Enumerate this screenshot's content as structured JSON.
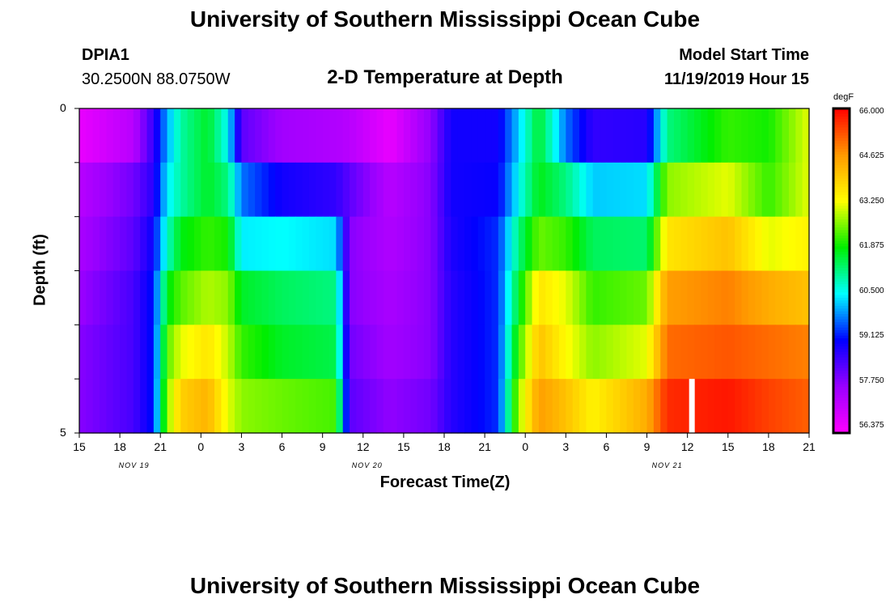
{
  "header": {
    "title": "University of Southern Mississippi Ocean Cube",
    "station_id": "DPIA1",
    "location": "30.2500N 88.0750W",
    "chart_title": "2-D Temperature at Depth",
    "model_label": "Model Start Time",
    "model_start": "11/19/2019 Hour 15"
  },
  "footer": {
    "title": "University of Southern Mississippi Ocean Cube"
  },
  "colors": {
    "scale": [
      "#ff00ff",
      "#9900ff",
      "#0000ff",
      "#00ffff",
      "#00ee00",
      "#ffff00",
      "#ff9900",
      "#ff0000"
    ],
    "white_marker": "#ffffff"
  },
  "chart_data": {
    "type": "heatmap",
    "xlabel": "Forecast Time(Z)",
    "ylabel": "Depth (ft)",
    "x_tick_labels": [
      "15",
      "18",
      "21",
      "0",
      "3",
      "6",
      "9",
      "12",
      "15",
      "18",
      "21",
      "0",
      "3",
      "6",
      "9",
      "12",
      "15",
      "18",
      "21"
    ],
    "day_labels": [
      {
        "label": "NOV 19",
        "tick": 1.35
      },
      {
        "label": "NOV 20",
        "tick": 7.1
      },
      {
        "label": "NOV 21",
        "tick": 14.5
      }
    ],
    "xlim_hours": [
      0,
      54
    ],
    "y_tick_labels": [
      "0",
      "5"
    ],
    "ylim": [
      0,
      5
    ],
    "colorbar": {
      "unit": "degF",
      "ticks": [
        "66.000",
        "64.625",
        "63.250",
        "61.875",
        "60.500",
        "59.125",
        "57.750",
        "56.375"
      ],
      "range": [
        56.0,
        66.0
      ]
    },
    "depth_rows": [
      0,
      1,
      2,
      3,
      4,
      5
    ],
    "keys": [
      {
        "h": 0,
        "v": [
          56.3,
          57.0,
          57.2,
          57.4,
          57.6,
          57.6
        ]
      },
      {
        "h": 4,
        "v": [
          57.0,
          57.8,
          58.0,
          58.2,
          58.2,
          58.2
        ]
      },
      {
        "h": 5.5,
        "v": [
          58.4,
          58.5,
          58.8,
          59.0,
          59.0,
          59.0
        ]
      },
      {
        "h": 6.5,
        "v": [
          59.8,
          60.2,
          60.6,
          61.6,
          62.2,
          62.5
        ]
      },
      {
        "h": 7.5,
        "v": [
          60.8,
          60.8,
          61.6,
          62.2,
          63.0,
          63.8
        ]
      },
      {
        "h": 9.5,
        "v": [
          61.5,
          61.5,
          62.0,
          62.7,
          63.5,
          64.2
        ]
      },
      {
        "h": 11,
        "v": [
          60.3,
          61.0,
          61.8,
          62.5,
          62.8,
          63.0
        ]
      },
      {
        "h": 12,
        "v": [
          58.0,
          59.5,
          60.2,
          61.5,
          62.0,
          62.5
        ]
      },
      {
        "h": 15,
        "v": [
          57.3,
          58.7,
          60.3,
          61.2,
          61.5,
          62.3
        ]
      },
      {
        "h": 19,
        "v": [
          57.1,
          58.4,
          60.1,
          61.0,
          61.3,
          62.1
        ]
      },
      {
        "h": 20,
        "v": [
          57.0,
          58.0,
          57.6,
          57.6,
          57.8,
          58.0
        ]
      },
      {
        "h": 23,
        "v": [
          56.3,
          57.0,
          57.1,
          57.2,
          57.3,
          57.5
        ]
      },
      {
        "h": 26,
        "v": [
          57.5,
          57.6,
          57.6,
          57.6,
          57.6,
          57.8
        ]
      },
      {
        "h": 27.5,
        "v": [
          58.7,
          58.7,
          58.6,
          58.5,
          58.5,
          58.5
        ]
      },
      {
        "h": 31,
        "v": [
          58.7,
          58.8,
          59.1,
          59.1,
          59.1,
          59.1
        ]
      },
      {
        "h": 32.5,
        "v": [
          60.0,
          60.3,
          61.0,
          61.5,
          62.0,
          62.6
        ]
      },
      {
        "h": 34,
        "v": [
          61.5,
          61.6,
          62.3,
          63.5,
          64.0,
          64.5
        ]
      },
      {
        "h": 36,
        "v": [
          59.5,
          61.0,
          62.0,
          63.0,
          63.2,
          64.0
        ]
      },
      {
        "h": 38,
        "v": [
          58.4,
          60.0,
          61.2,
          62.0,
          62.5,
          63.3
        ]
      },
      {
        "h": 42,
        "v": [
          58.5,
          60.1,
          61.1,
          62.3,
          63.0,
          64.3
        ]
      },
      {
        "h": 43.5,
        "v": [
          61.0,
          62.5,
          63.5,
          64.5,
          65.0,
          65.6
        ]
      },
      {
        "h": 48,
        "v": [
          62.0,
          63.0,
          64.0,
          64.8,
          65.2,
          65.8
        ]
      },
      {
        "h": 51,
        "v": [
          61.8,
          62.0,
          63.0,
          64.3,
          65.0,
          65.4
        ]
      },
      {
        "h": 54,
        "v": [
          63.0,
          63.0,
          63.3,
          64.0,
          64.8,
          65.1
        ]
      }
    ],
    "white_marker_hour": 45.3,
    "white_marker_rows": [
      5
    ]
  }
}
